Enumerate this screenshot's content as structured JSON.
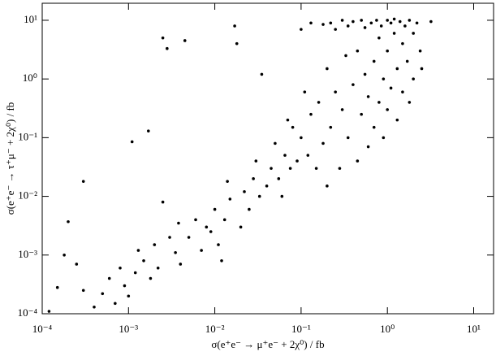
{
  "chart_data": {
    "type": "scatter",
    "x_label": "σ(e⁺e⁻ → μ⁺e⁻ + 2χ⁰) / fb",
    "y_label": "σ(e⁺e⁻ → τ⁺μ⁻ + 2χ⁰) / fb",
    "log_x": true,
    "log_y": true,
    "color": "#000000",
    "xlim": [
      0.0001,
      17
    ],
    "ylim": [
      0.0001,
      19.5
    ],
    "xticks": [
      {
        "value": 0.0001,
        "label": "10⁻⁴"
      },
      {
        "value": 0.001,
        "label": "10⁻³"
      },
      {
        "value": 0.01,
        "label": "10⁻²"
      },
      {
        "value": 0.1,
        "label": "10⁻¹"
      },
      {
        "value": 1,
        "label": "10⁰"
      },
      {
        "value": 10,
        "label": "10¹"
      }
    ],
    "yticks": [
      {
        "value": 0.0001,
        "label": "10⁻⁴"
      },
      {
        "value": 0.001,
        "label": "10⁻³"
      },
      {
        "value": 0.01,
        "label": "10⁻²"
      },
      {
        "value": 0.1,
        "label": "10⁻¹"
      },
      {
        "value": 1,
        "label": "10⁰"
      },
      {
        "value": 10,
        "label": "10¹"
      }
    ],
    "x": [
      0.00012,
      0.00015,
      0.0002,
      0.00018,
      0.00025,
      0.0003,
      0.0004,
      0.0005,
      0.0003,
      0.0006,
      0.0007,
      0.0008,
      0.0009,
      0.001,
      0.0012,
      0.0011,
      0.0013,
      0.0015,
      0.0018,
      0.0017,
      0.002,
      0.0022,
      0.0025,
      0.0028,
      0.0025,
      0.003,
      0.0035,
      0.004,
      0.0038,
      0.0045,
      0.005,
      0.006,
      0.007,
      0.008,
      0.009,
      0.01,
      0.011,
      0.012,
      0.013,
      0.014,
      0.015,
      0.017,
      0.018,
      0.02,
      0.022,
      0.025,
      0.028,
      0.03,
      0.033,
      0.035,
      0.04,
      0.045,
      0.05,
      0.055,
      0.06,
      0.065,
      0.07,
      0.075,
      0.08,
      0.09,
      0.1,
      0.1,
      0.11,
      0.12,
      0.13,
      0.13,
      0.15,
      0.16,
      0.18,
      0.18,
      0.2,
      0.2,
      0.22,
      0.22,
      0.25,
      0.25,
      0.28,
      0.3,
      0.3,
      0.33,
      0.35,
      0.35,
      0.4,
      0.4,
      0.45,
      0.45,
      0.5,
      0.5,
      0.55,
      0.55,
      0.6,
      0.6,
      0.65,
      0.7,
      0.7,
      0.75,
      0.8,
      0.8,
      0.85,
      0.9,
      0.9,
      1,
      1,
      1,
      1.1,
      1.1,
      1.2,
      1.2,
      1.3,
      1.3,
      1.4,
      1.5,
      1.5,
      1.6,
      1.7,
      1.8,
      1.8,
      2,
      2,
      2.2,
      2.4,
      2.5,
      3.2
    ],
    "values": [
      0.00011,
      0.00028,
      0.0037,
      0.001,
      0.0007,
      0.00025,
      0.00013,
      0.00022,
      0.018,
      0.0004,
      0.00015,
      0.0006,
      0.0003,
      0.0002,
      0.0005,
      0.085,
      0.0012,
      0.0008,
      0.0004,
      0.13,
      0.0015,
      0.0006,
      5,
      3.3,
      0.008,
      0.002,
      0.0011,
      0.0007,
      0.0035,
      4.5,
      0.002,
      0.004,
      0.0012,
      0.003,
      0.0025,
      0.006,
      0.0015,
      0.0008,
      0.004,
      0.018,
      0.009,
      8,
      4,
      0.003,
      0.012,
      0.006,
      0.02,
      0.04,
      0.01,
      1.2,
      0.015,
      0.03,
      0.08,
      0.02,
      0.01,
      0.05,
      0.2,
      0.03,
      0.15,
      0.04,
      7,
      0.1,
      0.6,
      0.05,
      9,
      0.25,
      0.03,
      0.4,
      8.5,
      0.08,
      0.015,
      1.5,
      9,
      0.15,
      0.6,
      7,
      0.03,
      0.3,
      10,
      2.5,
      0.1,
      8,
      0.8,
      9.5,
      0.04,
      3,
      0.25,
      10,
      1.2,
      7.5,
      0.07,
      0.5,
      9,
      2,
      0.15,
      10,
      5,
      0.4,
      8,
      1,
      0.1,
      10,
      0.3,
      3,
      9,
      0.7,
      6,
      10.5,
      0.2,
      1.5,
      9.5,
      4,
      0.6,
      8,
      2,
      10,
      0.4,
      6,
      1,
      9,
      3,
      1.5,
      9.5
    ]
  }
}
